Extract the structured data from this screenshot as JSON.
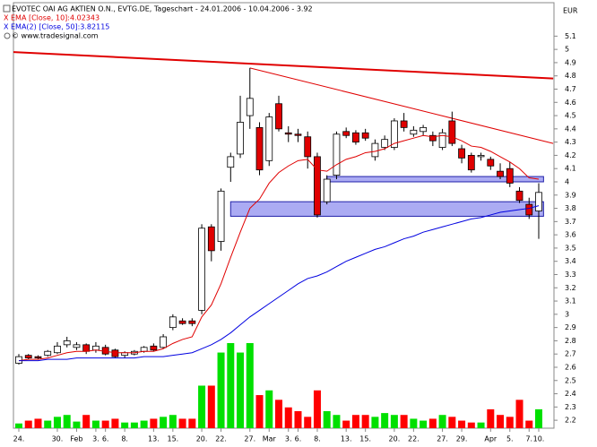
{
  "chart_data": {
    "type": "candlestick",
    "title": "EVOTEC OAI AG AKTIEN O.N., EVTG.DE, Tageschart - 24.01.2006 - 10.04.2006 - 3.92",
    "copyright": "© www.tradesignal.com",
    "currency": "EUR",
    "categories": [
      "24.",
      null,
      null,
      null,
      "30.",
      null,
      "Feb",
      null,
      "3.",
      "6.",
      null,
      "8.",
      null,
      null,
      "13.",
      null,
      "15.",
      null,
      null,
      "20.",
      null,
      "22.",
      null,
      null,
      "27.",
      null,
      "Mar",
      null,
      "3.",
      "6.",
      null,
      "8.",
      null,
      null,
      "13.",
      null,
      "15.",
      null,
      null,
      "20.",
      null,
      "22.",
      null,
      null,
      "27.",
      null,
      "29.",
      null,
      null,
      "Apr",
      null,
      "5.",
      null,
      "7.",
      "10."
    ],
    "open": [
      2.63,
      2.69,
      2.68,
      2.69,
      2.71,
      2.77,
      2.75,
      2.77,
      2.73,
      2.75,
      2.73,
      2.69,
      2.7,
      2.72,
      2.76,
      2.75,
      2.9,
      2.95,
      2.95,
      3.03,
      3.66,
      3.55,
      4.11,
      4.21,
      4.5,
      4.41,
      4.16,
      4.59,
      4.37,
      4.36,
      4.34,
      4.19,
      3.85,
      4.05,
      4.38,
      4.37,
      4.37,
      4.19,
      4.26,
      4.26,
      4.46,
      4.36,
      4.38,
      4.35,
      4.26,
      4.46,
      4.25,
      4.2,
      4.19,
      4.17,
      4.08,
      4.1,
      3.93,
      3.83,
      3.78
    ],
    "high": [
      2.7,
      2.7,
      2.69,
      2.73,
      2.79,
      2.83,
      2.79,
      2.78,
      2.79,
      2.77,
      2.74,
      2.72,
      2.73,
      2.76,
      2.78,
      2.85,
      3.0,
      2.97,
      2.97,
      3.68,
      3.68,
      3.95,
      4.22,
      4.65,
      4.86,
      4.45,
      4.52,
      4.65,
      4.42,
      4.4,
      4.38,
      4.22,
      4.05,
      4.38,
      4.41,
      4.39,
      4.4,
      4.32,
      4.35,
      4.48,
      4.52,
      4.42,
      4.43,
      4.38,
      4.4,
      4.53,
      4.28,
      4.22,
      4.22,
      4.19,
      4.14,
      4.15,
      3.96,
      3.88,
      3.99
    ],
    "low": [
      2.62,
      2.66,
      2.66,
      2.68,
      2.7,
      2.75,
      2.73,
      2.7,
      2.71,
      2.69,
      2.67,
      2.67,
      2.69,
      2.71,
      2.72,
      2.74,
      2.88,
      2.92,
      2.91,
      3.0,
      3.4,
      3.48,
      4.0,
      4.18,
      4.4,
      4.05,
      4.12,
      4.38,
      4.3,
      4.3,
      4.1,
      3.73,
      3.83,
      4.02,
      4.33,
      4.28,
      4.31,
      4.16,
      4.24,
      4.24,
      4.38,
      4.34,
      4.35,
      4.27,
      4.24,
      4.27,
      4.14,
      4.07,
      4.16,
      4.09,
      4.02,
      3.96,
      3.84,
      3.72,
      3.57
    ],
    "close": [
      2.68,
      2.67,
      2.67,
      2.72,
      2.76,
      2.8,
      2.77,
      2.72,
      2.76,
      2.7,
      2.68,
      2.71,
      2.72,
      2.75,
      2.73,
      2.83,
      2.98,
      2.93,
      2.93,
      3.65,
      3.48,
      3.93,
      4.19,
      4.45,
      4.63,
      4.09,
      4.49,
      4.4,
      4.36,
      4.35,
      4.19,
      3.75,
      4.02,
      4.36,
      4.35,
      4.3,
      4.33,
      4.29,
      4.32,
      4.46,
      4.41,
      4.39,
      4.41,
      4.31,
      4.37,
      4.29,
      4.18,
      4.09,
      4.2,
      4.12,
      4.04,
      3.99,
      3.86,
      3.75,
      3.92
    ],
    "volumes": [
      5,
      8,
      10,
      8,
      12,
      14,
      7,
      14,
      8,
      8,
      10,
      6,
      6,
      8,
      10,
      12,
      14,
      10,
      10,
      45,
      45,
      80,
      90,
      80,
      90,
      35,
      40,
      30,
      22,
      18,
      12,
      40,
      18,
      14,
      8,
      14,
      14,
      12,
      16,
      14,
      14,
      10,
      8,
      10,
      14,
      12,
      8,
      6,
      6,
      20,
      14,
      12,
      30,
      8,
      20
    ],
    "up_color": "#ffffff",
    "down_color": "#e00000",
    "volume_up_color": "#00e000",
    "volume_down_color": "#ff0000",
    "series": [
      {
        "name": "EMA [Close, 10]:4.02343",
        "color": "#e00000",
        "values": [
          2.65,
          2.66,
          2.66,
          2.67,
          2.69,
          2.71,
          2.72,
          2.72,
          2.73,
          2.72,
          2.71,
          2.71,
          2.71,
          2.72,
          2.72,
          2.74,
          2.78,
          2.81,
          2.83,
          2.98,
          3.07,
          3.23,
          3.43,
          3.62,
          3.8,
          3.87,
          3.99,
          4.07,
          4.12,
          4.16,
          4.17,
          4.09,
          4.08,
          4.13,
          4.17,
          4.19,
          4.22,
          4.23,
          4.25,
          4.29,
          4.31,
          4.33,
          4.35,
          4.34,
          4.35,
          4.34,
          4.31,
          4.27,
          4.26,
          4.23,
          4.19,
          4.15,
          4.1,
          4.03,
          4.02
        ]
      },
      {
        "name": "EMA(2) [Close, 50]:3.82115",
        "color": "#0000e0",
        "values": [
          2.65,
          2.65,
          2.65,
          2.66,
          2.66,
          2.66,
          2.67,
          2.67,
          2.67,
          2.67,
          2.67,
          2.67,
          2.67,
          2.68,
          2.68,
          2.68,
          2.69,
          2.7,
          2.71,
          2.74,
          2.77,
          2.81,
          2.86,
          2.92,
          2.98,
          3.03,
          3.08,
          3.13,
          3.18,
          3.23,
          3.27,
          3.29,
          3.32,
          3.36,
          3.4,
          3.43,
          3.46,
          3.49,
          3.51,
          3.54,
          3.57,
          3.59,
          3.62,
          3.64,
          3.66,
          3.68,
          3.7,
          3.72,
          3.73,
          3.75,
          3.77,
          3.78,
          3.79,
          3.8,
          3.82
        ]
      }
    ],
    "trendlines": [
      {
        "color": "#e00000",
        "width": 2,
        "x": [
          -0.6,
          55.5
        ],
        "y": [
          4.98,
          4.78
        ]
      },
      {
        "color": "#e00000",
        "width": 1,
        "x": [
          24,
          55.5
        ],
        "y": [
          4.86,
          4.29
        ]
      }
    ],
    "zones": [
      {
        "color": "#8888ee",
        "x": [
          22,
          54.5
        ],
        "y": [
          3.74,
          3.85
        ]
      },
      {
        "color": "#8888ee",
        "x": [
          32,
          54.5
        ],
        "y": [
          4.0,
          4.04
        ]
      }
    ],
    "ylim": [
      2.14,
      5.17
    ],
    "yticks": [
      2.2,
      2.3,
      2.4,
      2.5,
      2.6,
      2.7,
      2.8,
      2.9,
      3,
      3.1,
      3.2,
      3.3,
      3.4,
      3.5,
      3.6,
      3.7,
      3.8,
      3.9,
      4,
      4.1,
      4.2,
      4.3,
      4.4,
      4.5,
      4.6,
      4.7,
      4.8,
      4.9,
      5,
      5.1
    ]
  }
}
